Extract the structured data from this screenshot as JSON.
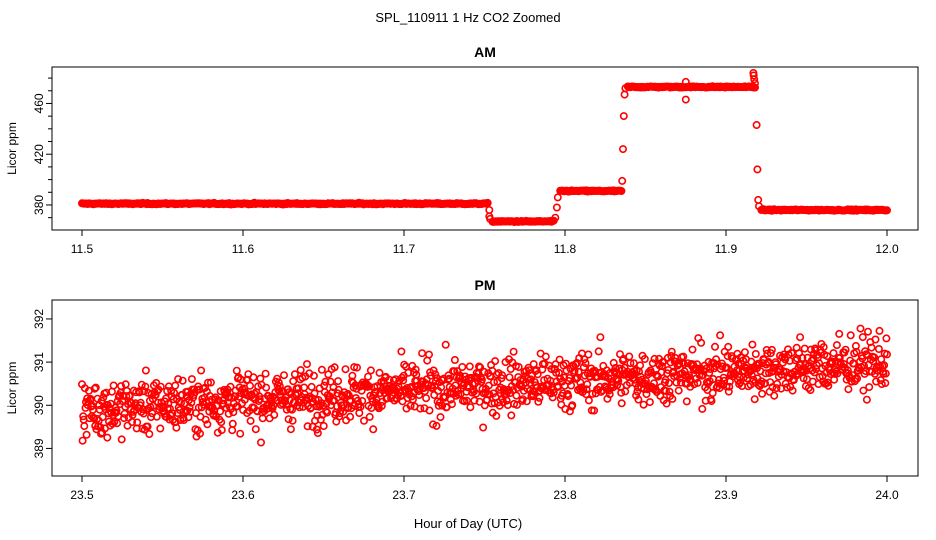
{
  "figure": {
    "suptitle": "SPL_110911  1 Hz CO2 Zoomed",
    "xlabel": "Hour of Day (UTC)"
  },
  "chart_data": [
    {
      "type": "scatter",
      "title": "AM",
      "xlabel": "",
      "ylabel": "Licor ppm",
      "xlim": [
        11.5,
        12.0
      ],
      "ylim": [
        365,
        484
      ],
      "xticks": [
        "11.5",
        "11.6",
        "11.7",
        "11.8",
        "11.9",
        "12.0"
      ],
      "xtick_values": [
        11.5,
        11.6,
        11.7,
        11.8,
        11.9,
        12.0
      ],
      "yticks": [
        "380",
        "420",
        "460"
      ],
      "ytick_values": [
        380,
        420,
        460
      ],
      "marker": "open circle",
      "color": "#ff0000",
      "series": [
        {
          "segments": [
            {
              "x_start": 11.5,
              "x_end": 11.752,
              "y": 381
            },
            {
              "x_start": 11.755,
              "x_end": 11.793,
              "y": 367
            },
            {
              "x_start": 11.797,
              "x_end": 11.835,
              "y": 391
            },
            {
              "x_start": 11.839,
              "x_end": 11.918,
              "y": 473
            },
            {
              "x_start": 11.922,
              "x_end": 12.0,
              "y": 376
            }
          ],
          "transition_points": [
            [
              11.753,
              376
            ],
            [
              11.753,
              371
            ],
            [
              11.7535,
              369
            ],
            [
              11.794,
              370
            ],
            [
              11.795,
              378
            ],
            [
              11.7955,
              386
            ],
            [
              11.8355,
              399
            ],
            [
              11.836,
              424
            ],
            [
              11.8365,
              450
            ],
            [
              11.837,
              467
            ],
            [
              11.8375,
              472
            ],
            [
              11.875,
              463
            ],
            [
              11.875,
              477
            ],
            [
              11.917,
              484
            ],
            [
              11.9172,
              482
            ],
            [
              11.9175,
              479
            ],
            [
              11.918,
              476
            ],
            [
              11.919,
              443
            ],
            [
              11.9195,
              408
            ],
            [
              11.92,
              384
            ],
            [
              11.9205,
              379
            ]
          ]
        }
      ]
    },
    {
      "type": "scatter",
      "title": "PM",
      "xlabel": "Hour of Day (UTC)",
      "ylabel": "Licor ppm",
      "xlim": [
        23.5,
        24.0
      ],
      "ylim": [
        388.5,
        392.3
      ],
      "xticks": [
        "23.5",
        "23.6",
        "23.7",
        "23.8",
        "23.9",
        "24.0"
      ],
      "xtick_values": [
        23.5,
        23.6,
        23.7,
        23.8,
        23.9,
        24.0
      ],
      "yticks": [
        "389",
        "390",
        "391",
        "392"
      ],
      "ytick_values": [
        389,
        390,
        391,
        392
      ],
      "marker": "open circle",
      "color": "#ff0000",
      "series": [
        {
          "trend": {
            "x_start": 23.5,
            "y_start": 389.9,
            "x_end": 24.0,
            "y_end": 391.0
          },
          "spread": 0.45,
          "points_per_hour": 3600
        }
      ]
    }
  ]
}
